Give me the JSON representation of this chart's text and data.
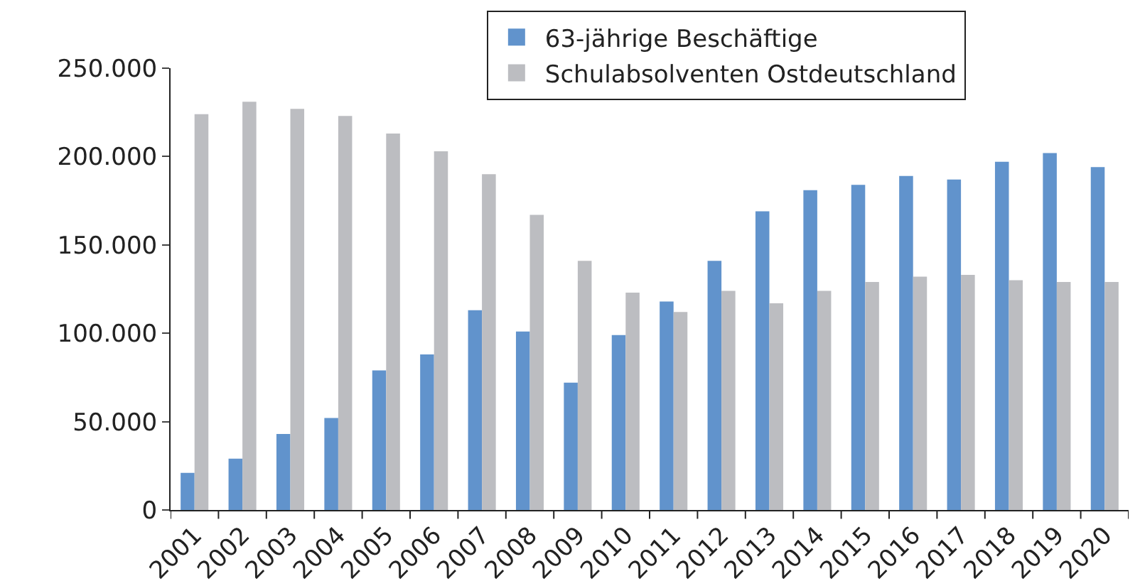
{
  "chart_data": {
    "type": "bar",
    "categories": [
      "2001",
      "2002",
      "2003",
      "2004",
      "2005",
      "2006",
      "2007",
      "2008",
      "2009",
      "2010",
      "2011",
      "2012",
      "2013",
      "2014",
      "2015",
      "2016",
      "2017",
      "2018",
      "2019",
      "2020"
    ],
    "series": [
      {
        "name": "63-jährige Beschäftige",
        "color": "#6193cc",
        "values": [
          21000,
          29000,
          43000,
          52000,
          79000,
          88000,
          113000,
          101000,
          72000,
          99000,
          118000,
          141000,
          169000,
          181000,
          184000,
          189000,
          187000,
          197000,
          202000,
          194000
        ]
      },
      {
        "name": "Schulabsolventen Ostdeutschland",
        "color": "#bcbdc1",
        "values": [
          224000,
          231000,
          227000,
          223000,
          213000,
          203000,
          190000,
          167000,
          141000,
          123000,
          112000,
          124000,
          117000,
          124000,
          129000,
          132000,
          133000,
          130000,
          129000,
          129000
        ]
      }
    ],
    "ylim": [
      0,
      250000
    ],
    "yticks": [
      {
        "value": 0,
        "label": "0"
      },
      {
        "value": 50000,
        "label": "50.000"
      },
      {
        "value": 100000,
        "label": "100.000"
      },
      {
        "value": 150000,
        "label": "150.000"
      },
      {
        "value": 200000,
        "label": "200.000"
      },
      {
        "value": 250000,
        "label": "250.000"
      }
    ],
    "grid": false,
    "legend": "top"
  }
}
